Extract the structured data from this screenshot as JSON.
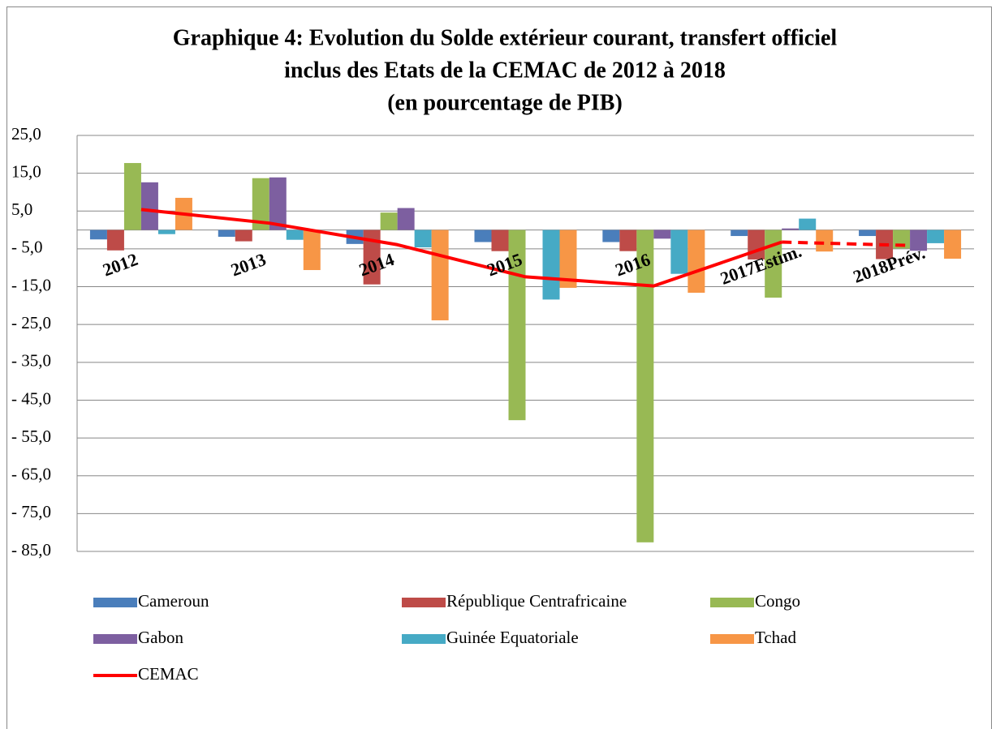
{
  "chart_data": {
    "type": "bar_line",
    "title": [
      "Graphique 4: Evolution du Solde extérieur courant, transfert officiel",
      "inclus des Etats de la CEMAC de 2012 à 2018",
      "(en pourcentage de PIB)"
    ],
    "categories": [
      "2012",
      "2013",
      "2014",
      "2015",
      "2016",
      "2017Estim.",
      "2018Prév."
    ],
    "series": [
      {
        "name": "Cameroun",
        "type": "bar",
        "color": "#4a7ebb",
        "values": [
          -2.5,
          -1.8,
          -3.7,
          -3.2,
          -3.2,
          -1.6,
          -1.6
        ]
      },
      {
        "name": "République Centrafricaine",
        "type": "bar",
        "color": "#be4b48",
        "values": [
          -5.4,
          -3.0,
          -14.4,
          -5.6,
          -5.6,
          -7.8,
          -7.7
        ]
      },
      {
        "name": "Congo",
        "type": "bar",
        "color": "#98b954",
        "values": [
          17.7,
          13.7,
          4.6,
          -50.3,
          -82.6,
          -17.9,
          -4.9
        ]
      },
      {
        "name": "Gabon",
        "type": "bar",
        "color": "#7d5fa0",
        "values": [
          12.6,
          13.9,
          5.8,
          0,
          -2.3,
          0.4,
          -5.5
        ]
      },
      {
        "name": "Guinée Equatoriale",
        "type": "bar",
        "color": "#46aac5",
        "values": [
          -1.1,
          -2.6,
          -4.6,
          -18.4,
          -11.6,
          3.0,
          -3.5
        ]
      },
      {
        "name": "Tchad",
        "type": "bar",
        "color": "#f79646",
        "values": [
          8.5,
          -10.6,
          -23.9,
          -15.3,
          -16.6,
          -5.7,
          -7.6
        ]
      },
      {
        "name": "CEMAC",
        "type": "line",
        "color": "#ff0000",
        "values": [
          5.4,
          1.8,
          -3.9,
          -12.4,
          -14.8,
          -3.2,
          -4.1
        ],
        "dashed_from": 5
      }
    ],
    "ylim": [
      -85,
      25
    ],
    "yticks": [
      {
        "value": 25,
        "label": "25,0"
      },
      {
        "value": 15,
        "label": "15,0"
      },
      {
        "value": 5,
        "label": "5,0"
      },
      {
        "value": -5,
        "label": "- 5,0"
      },
      {
        "value": -15,
        "label": "- 15,0"
      },
      {
        "value": -25,
        "label": "- 25,0"
      },
      {
        "value": -35,
        "label": "- 35,0"
      },
      {
        "value": -45,
        "label": "- 45,0"
      },
      {
        "value": -55,
        "label": "- 55,0"
      },
      {
        "value": -65,
        "label": "- 65,0"
      },
      {
        "value": -75,
        "label": "- 75,0"
      },
      {
        "value": -85,
        "label": "- 85,0"
      }
    ],
    "grid": true
  }
}
